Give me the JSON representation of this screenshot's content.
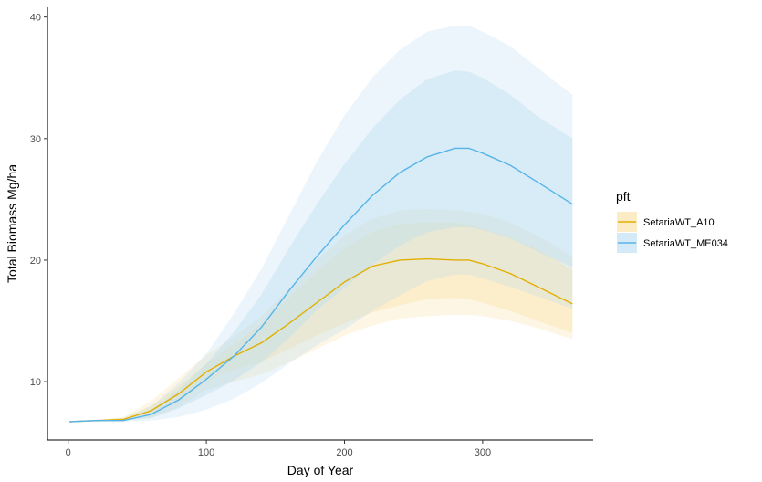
{
  "chart_data": {
    "type": "line",
    "xlabel": "Day of Year",
    "ylabel": "Total Biomass Mg/ha",
    "xlim": [
      -15,
      380
    ],
    "ylim": [
      5.2,
      40.8
    ],
    "xticks": [
      0,
      100,
      200,
      300
    ],
    "yticks": [
      10,
      20,
      30,
      40
    ],
    "grid": false,
    "legend": {
      "title": "pft",
      "position": "right"
    },
    "x": [
      1,
      20,
      40,
      60,
      80,
      100,
      120,
      140,
      160,
      180,
      200,
      220,
      240,
      260,
      280,
      290,
      300,
      320,
      340,
      365
    ],
    "series": [
      {
        "name": "SetariaWT_A10",
        "color": "#E1AF00",
        "band_color": "#F9DFA0",
        "median": [
          6.7,
          6.8,
          6.9,
          7.6,
          9.0,
          10.8,
          12.1,
          13.2,
          14.8,
          16.5,
          18.2,
          19.5,
          20.0,
          20.1,
          20.0,
          20.0,
          19.7,
          18.9,
          17.8,
          16.4
        ],
        "inner": {
          "lower": [
            6.7,
            6.8,
            6.8,
            7.2,
            8.4,
            10.0,
            11.0,
            11.6,
            12.7,
            13.8,
            14.8,
            15.7,
            16.3,
            16.8,
            16.9,
            16.8,
            16.5,
            15.8,
            15.0,
            14.0
          ],
          "upper": [
            6.7,
            6.8,
            7.0,
            8.0,
            9.6,
            11.5,
            13.1,
            14.8,
            16.9,
            19.1,
            21.0,
            22.3,
            23.0,
            23.1,
            23.1,
            22.9,
            22.6,
            21.9,
            20.9,
            19.2
          ]
        },
        "outer": {
          "lower": [
            6.7,
            6.7,
            6.8,
            7.0,
            7.9,
            9.3,
            10.0,
            10.6,
            11.6,
            12.7,
            13.8,
            14.6,
            15.2,
            15.4,
            15.5,
            15.5,
            15.4,
            15.0,
            14.4,
            13.5
          ],
          "upper": [
            6.7,
            6.8,
            7.1,
            8.4,
            10.3,
            12.2,
            13.7,
            15.4,
            17.7,
            20.0,
            22.0,
            23.4,
            24.1,
            24.2,
            24.1,
            24.0,
            23.8,
            23.1,
            22.0,
            20.3
          ]
        }
      },
      {
        "name": "SetariaWT_ME034",
        "color": "#56B4E9",
        "band_color": "#B7DCF2",
        "median": [
          6.7,
          6.8,
          6.8,
          7.3,
          8.5,
          10.2,
          12.1,
          14.5,
          17.5,
          20.3,
          22.9,
          25.3,
          27.2,
          28.5,
          29.2,
          29.2,
          28.8,
          27.8,
          26.4,
          24.6
        ],
        "inner": {
          "lower": [
            6.7,
            6.7,
            6.8,
            7.0,
            7.8,
            8.9,
            10.1,
            11.6,
            13.6,
            15.9,
            17.7,
            19.6,
            21.2,
            22.3,
            22.7,
            22.7,
            22.5,
            21.8,
            20.7,
            19.4
          ],
          "upper": [
            6.7,
            6.8,
            6.9,
            7.7,
            9.3,
            11.5,
            14.1,
            17.2,
            21.0,
            24.6,
            27.9,
            30.8,
            33.2,
            34.9,
            35.6,
            35.5,
            35.0,
            33.6,
            31.8,
            30.0
          ]
        },
        "outer": {
          "lower": [
            6.7,
            6.7,
            6.7,
            6.8,
            7.1,
            7.7,
            8.6,
            9.9,
            11.5,
            13.0,
            14.3,
            15.8,
            17.1,
            18.3,
            18.8,
            18.8,
            18.5,
            17.8,
            17.0,
            16.0
          ],
          "upper": [
            6.7,
            6.8,
            7.0,
            8.0,
            9.9,
            12.3,
            15.6,
            19.3,
            23.7,
            28.1,
            31.9,
            35.0,
            37.3,
            38.8,
            39.3,
            39.3,
            38.8,
            37.6,
            35.8,
            33.6
          ]
        }
      }
    ]
  }
}
